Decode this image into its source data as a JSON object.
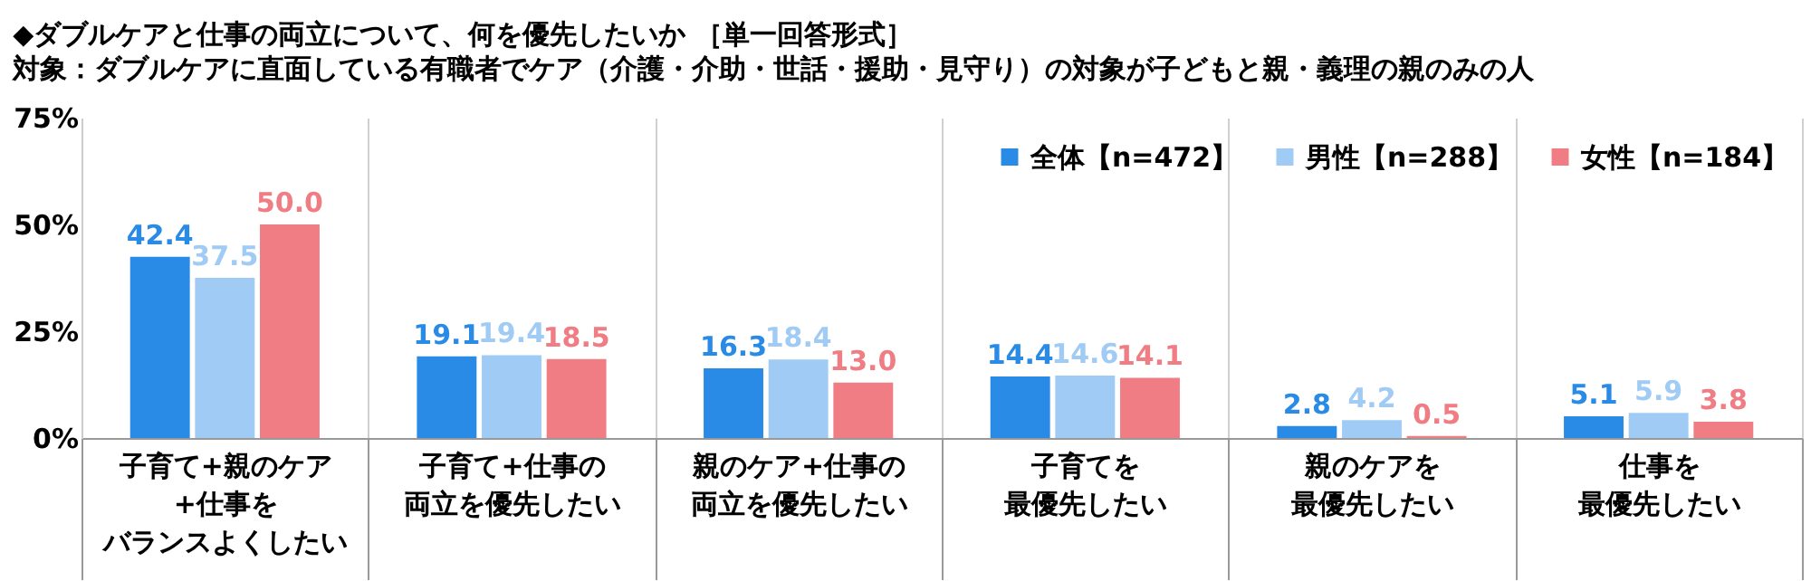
{
  "chart_data": {
    "type": "bar",
    "title": "◆ダブルケアと仕事の両立について、何を優先したいか ［単一回答形式］",
    "subtitle": "対象：ダブルケアに直面している有職者でケア（介護・介助・世話・援助・見守り）の対象が子どもと親・義理の親のみの人",
    "categories": [
      "子育て+親のケア+仕事をバランスよくしたい",
      "子育て+仕事の両立を優先したい",
      "親のケア+仕事の両立を優先したい",
      "子育てを最優先したい",
      "親のケアを最優先したい",
      "仕事を最優先したい"
    ],
    "series": [
      {
        "name": "全体【n=472】",
        "color": "#2a8be6",
        "values": [
          42.4,
          19.1,
          16.3,
          14.4,
          2.8,
          5.1
        ],
        "value_labels": [
          "42.4",
          "19.1",
          "16.3",
          "14.4",
          "2.8",
          "5.1"
        ]
      },
      {
        "name": "男性【n=288】",
        "color": "#9fcbf5",
        "values": [
          37.5,
          19.4,
          18.4,
          14.6,
          4.2,
          5.9
        ],
        "value_labels": [
          "37.5",
          "19.4",
          "18.4",
          "14.6",
          "4.2",
          "5.9"
        ]
      },
      {
        "name": "女性【n=184】",
        "color": "#f07c84",
        "values": [
          50.0,
          18.5,
          13.0,
          14.1,
          0.5,
          3.8
        ],
        "value_labels": [
          "50.0",
          "18.5",
          "13.0",
          "14.1",
          "0.5",
          "3.8"
        ]
      }
    ],
    "ylim": [
      0,
      75
    ],
    "yticks": [
      {
        "value": 0,
        "label": "0%"
      },
      {
        "value": 25,
        "label": "25%"
      },
      {
        "value": 50,
        "label": "50%"
      },
      {
        "value": 75,
        "label": "75%"
      }
    ],
    "legend": "top right",
    "grid": "x"
  }
}
